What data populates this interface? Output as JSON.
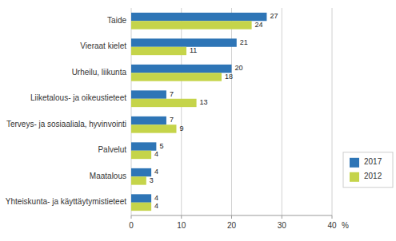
{
  "chart_data": {
    "type": "bar",
    "orientation": "horizontal",
    "categories": [
      "Yhteiskunta- ja käyttäytymistieteet",
      "Maatalous",
      "Palvelut",
      "Terveys- ja sosiaaliala, hyvinvointi",
      "Liiketalous- ja oikeustieteet",
      "Urheilu, liikunta",
      "Vieraat kielet",
      "Taide"
    ],
    "series": [
      {
        "name": "2017",
        "color": "#2e75b6",
        "values": [
          4,
          4,
          5,
          7,
          7,
          20,
          21,
          27
        ]
      },
      {
        "name": "2012",
        "color": "#c5d44a",
        "values": [
          4,
          3,
          4,
          9,
          13,
          18,
          11,
          24
        ]
      }
    ],
    "xlim": [
      0,
      40
    ],
    "xticks": [
      0,
      10,
      20,
      30,
      40
    ],
    "xlabel": "%",
    "grid": true,
    "legend": "lower right",
    "data_labels": true
  }
}
